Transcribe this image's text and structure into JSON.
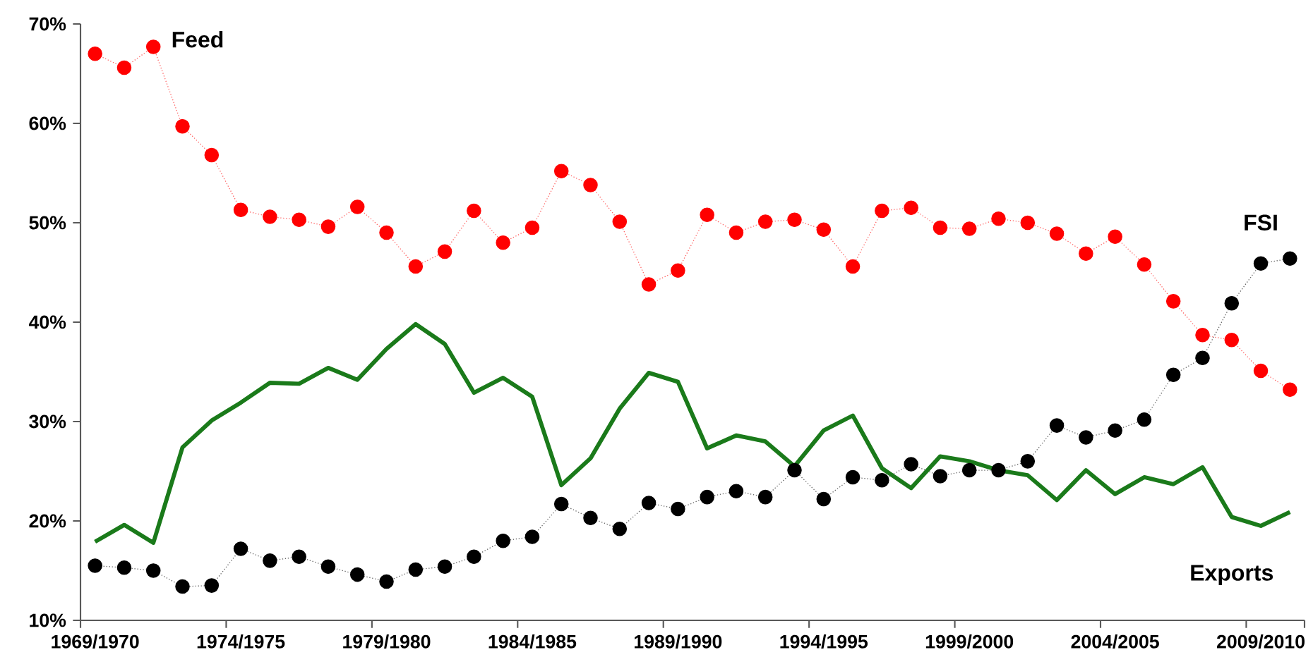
{
  "chart_data": {
    "type": "line",
    "categories": [
      "1969/1970",
      null,
      null,
      null,
      null,
      "1974/1975",
      null,
      null,
      null,
      null,
      "1979/1980",
      null,
      null,
      null,
      null,
      "1984/1985",
      null,
      null,
      null,
      null,
      "1989/1990",
      null,
      null,
      null,
      null,
      "1994/1995",
      null,
      null,
      null,
      null,
      "1999/2000",
      null,
      null,
      null,
      null,
      "2004/2005",
      null,
      null,
      null,
      null,
      "2009/2010",
      null
    ],
    "series": [
      {
        "name": "Feed",
        "color": "#ff0000",
        "marker": "circle",
        "line_style": "dotted",
        "values": [
          67.0,
          65.6,
          67.7,
          59.7,
          56.8,
          51.3,
          50.6,
          50.3,
          49.6,
          51.6,
          49.0,
          45.6,
          47.1,
          51.2,
          48.0,
          49.5,
          55.2,
          53.8,
          50.1,
          43.8,
          45.2,
          50.8,
          49.0,
          50.1,
          50.3,
          49.3,
          45.6,
          51.2,
          51.5,
          49.5,
          49.4,
          50.4,
          50.0,
          48.9,
          46.9,
          48.6,
          45.8,
          42.1,
          38.7,
          38.2,
          35.1,
          33.2
        ]
      },
      {
        "name": "FSI",
        "color": "#000000",
        "marker": "circle",
        "line_style": "dotted",
        "values": [
          15.5,
          15.3,
          15.0,
          13.4,
          13.5,
          17.2,
          16.0,
          16.4,
          15.4,
          14.6,
          13.9,
          15.1,
          15.4,
          16.4,
          18.0,
          18.4,
          21.7,
          20.3,
          19.2,
          21.8,
          21.2,
          22.4,
          23.0,
          22.4,
          25.1,
          22.2,
          24.4,
          24.1,
          25.7,
          24.5,
          25.1,
          25.1,
          26.0,
          29.6,
          28.4,
          29.1,
          30.2,
          34.7,
          36.4,
          41.9,
          45.9,
          46.4
        ]
      },
      {
        "name": "Exports",
        "color": "#1a7a1a",
        "marker": "none",
        "line_style": "solid",
        "values": [
          17.9,
          19.6,
          17.8,
          27.4,
          30.1,
          31.9,
          33.9,
          33.8,
          35.4,
          34.2,
          37.3,
          39.8,
          37.8,
          32.9,
          34.4,
          32.5,
          23.6,
          26.3,
          31.3,
          34.9,
          34.0,
          27.3,
          28.6,
          28.0,
          25.5,
          29.1,
          30.6,
          25.3,
          23.3,
          26.5,
          26.0,
          25.1,
          24.6,
          22.1,
          25.1,
          22.7,
          24.4,
          23.7,
          25.4,
          20.4,
          19.5,
          20.9
        ]
      }
    ],
    "ylim": [
      10,
      70
    ],
    "yticks": [
      {
        "value": 10,
        "label": "10%"
      },
      {
        "value": 20,
        "label": "20%"
      },
      {
        "value": 30,
        "label": "30%"
      },
      {
        "value": 40,
        "label": "40%"
      },
      {
        "value": 50,
        "label": "50%"
      },
      {
        "value": 60,
        "label": "60%"
      },
      {
        "value": 70,
        "label": "70%"
      }
    ],
    "grid": false,
    "legend": false
  }
}
